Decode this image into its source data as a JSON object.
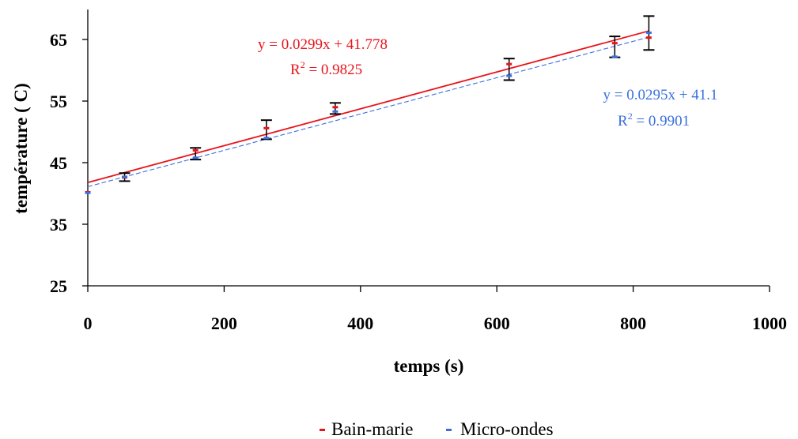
{
  "chart_data": {
    "type": "scatter",
    "xlabel": "temps (s)",
    "ylabel": "température ( C)",
    "xlim": [
      0,
      1000
    ],
    "ylim": [
      25,
      70
    ],
    "x_ticks": [
      0,
      200,
      400,
      600,
      800,
      1000
    ],
    "y_ticks": [
      25,
      35,
      45,
      55,
      65
    ],
    "grid": false,
    "legend_position": "bottom",
    "series": [
      {
        "name": "Bain-marie",
        "color": "#e8141b",
        "points": [
          {
            "x": 0,
            "y": 40.2
          },
          {
            "x": 54,
            "y": 42.6
          },
          {
            "x": 158,
            "y": 47.0
          },
          {
            "x": 262,
            "y": 50.6
          },
          {
            "x": 363,
            "y": 54.0
          },
          {
            "x": 618,
            "y": 61.0
          },
          {
            "x": 773,
            "y": 64.4
          },
          {
            "x": 823,
            "y": 65.3
          }
        ],
        "trendline": {
          "slope": 0.0299,
          "intercept": 41.778,
          "style": "solid",
          "equation": "y = 0.0299x + 41.778",
          "r2_prefix": "R",
          "r2_exp": "2",
          "r2_value": " = 0.9825"
        }
      },
      {
        "name": "Micro-ondes",
        "color": "#3a6fe0",
        "points": [
          {
            "x": 0,
            "y": 40.1
          },
          {
            "x": 54,
            "y": 42.7
          },
          {
            "x": 158,
            "y": 45.8
          },
          {
            "x": 262,
            "y": 49.0
          },
          {
            "x": 363,
            "y": 53.3
          },
          {
            "x": 618,
            "y": 59.1
          },
          {
            "x": 773,
            "y": 62.2
          },
          {
            "x": 823,
            "y": 66.1
          }
        ],
        "trendline": {
          "slope": 0.0295,
          "intercept": 41.1,
          "style": "dashed",
          "equation": "y = 0.0295x + 41.1",
          "r2_prefix": "R",
          "r2_exp": "2",
          "r2_value": " = 0.9901"
        }
      }
    ],
    "error_bars": [
      {
        "x": 54,
        "low": 42.0,
        "high": 43.3
      },
      {
        "x": 158,
        "low": 45.5,
        "high": 47.4
      },
      {
        "x": 262,
        "low": 48.8,
        "high": 51.9
      },
      {
        "x": 363,
        "low": 52.9,
        "high": 54.7
      },
      {
        "x": 618,
        "low": 58.4,
        "high": 61.9
      },
      {
        "x": 773,
        "low": 62.1,
        "high": 65.5
      },
      {
        "x": 823,
        "low": 63.3,
        "high": 68.8
      }
    ]
  }
}
